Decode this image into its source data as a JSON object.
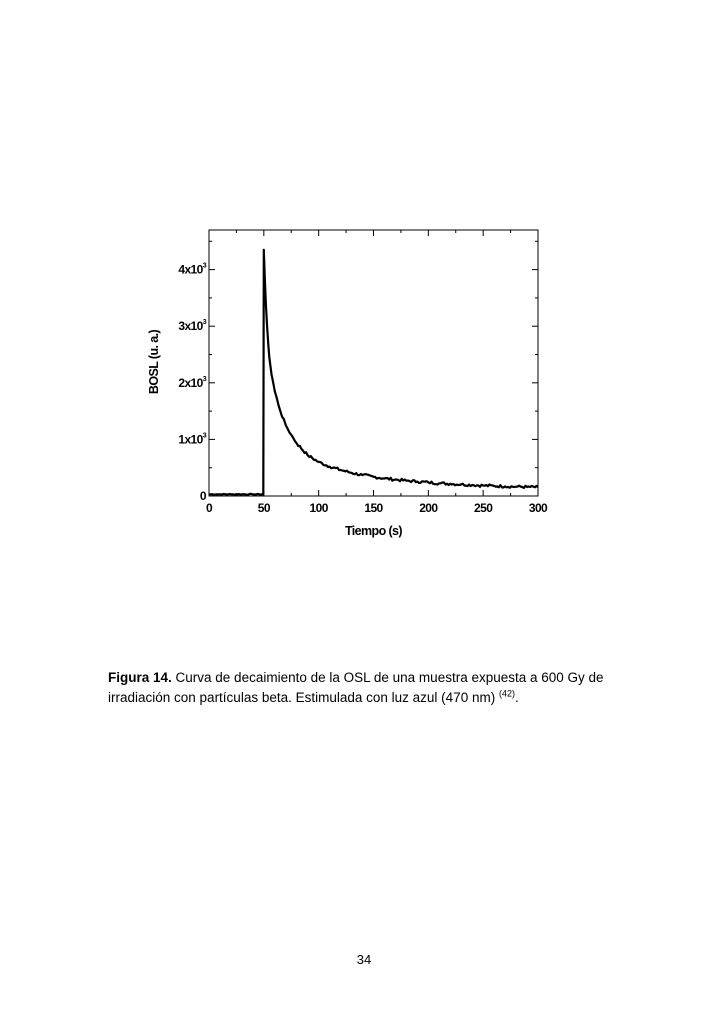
{
  "chart_data": {
    "type": "line",
    "xlabel": "Tiempo (s)",
    "ylabel": "BOSL (u. a.)",
    "xlim": [
      0,
      300
    ],
    "ylim": [
      0,
      4700
    ],
    "x_ticks": [
      0,
      50,
      100,
      150,
      200,
      250,
      300
    ],
    "x_tick_labels": [
      "0",
      "50",
      "100",
      "150",
      "200",
      "250",
      "300"
    ],
    "y_ticks": [
      {
        "value": 0,
        "label": "0",
        "exp": ""
      },
      {
        "value": 1000,
        "label": "1x10",
        "exp": "3"
      },
      {
        "value": 2000,
        "label": "2x10",
        "exp": "3"
      },
      {
        "value": 3000,
        "label": "3x10",
        "exp": "3"
      },
      {
        "value": 4000,
        "label": "4x10",
        "exp": "3"
      }
    ],
    "grid": false,
    "series": [
      {
        "x": [
          0,
          10,
          20,
          30,
          40,
          49.5,
          50,
          51,
          52,
          53,
          54,
          55,
          57,
          60,
          65,
          70,
          75,
          80,
          90,
          100,
          110,
          120,
          130,
          140,
          150,
          160,
          170,
          180,
          190,
          200,
          210,
          220,
          230,
          240,
          250,
          260,
          270,
          280,
          290,
          300
        ],
        "y": [
          30,
          30,
          30,
          30,
          30,
          30,
          4350,
          3800,
          3350,
          3000,
          2700,
          2450,
          2150,
          1850,
          1500,
          1250,
          1080,
          930,
          720,
          600,
          520,
          460,
          410,
          370,
          340,
          310,
          290,
          270,
          255,
          240,
          225,
          215,
          205,
          195,
          185,
          178,
          170,
          165,
          160,
          155
        ]
      }
    ]
  },
  "caption": {
    "label": "Figura 14.",
    "text": " Curva de decaimiento de la OSL de una muestra expuesta a 600 Gy de irradiación con partículas beta. Estimulada con luz azul (470 nm) ",
    "ref": "(42)",
    "end": "."
  },
  "page_number": "34"
}
